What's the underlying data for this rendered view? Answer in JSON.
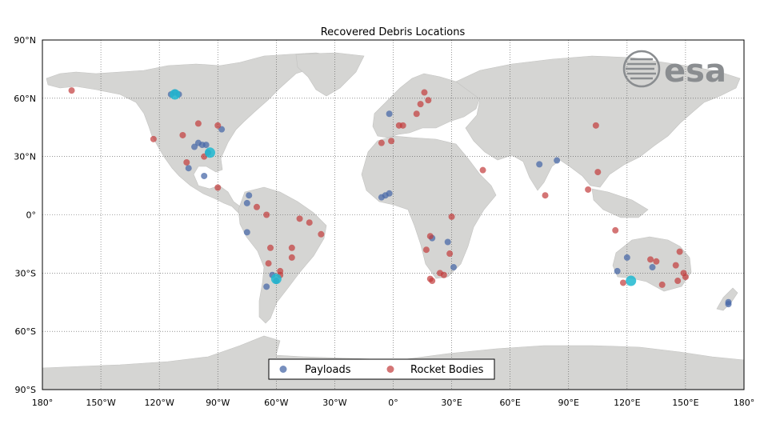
{
  "title": "Recovered Debris Locations",
  "logo": {
    "text": "esa",
    "color": "#8a8d90"
  },
  "colors": {
    "land": "#d5d5d3",
    "ocean": "#ffffff",
    "payloads": "#4a6aa8",
    "rocket_bodies": "#c23b3b",
    "highlight": "#1fb8d0",
    "grid": "#555555"
  },
  "legend": {
    "placement": "bottom-center",
    "items": [
      {
        "key": "payloads",
        "label": "Payloads"
      },
      {
        "key": "rocket_bodies",
        "label": "Rocket Bodies"
      }
    ]
  },
  "chart_data": {
    "type": "scatter",
    "title": "Recovered Debris Locations",
    "xlim": [
      -180,
      180
    ],
    "ylim": [
      -90,
      90
    ],
    "grid": true,
    "x_ticks": [
      {
        "v": -180,
        "label": "180°"
      },
      {
        "v": -150,
        "label": "150°W"
      },
      {
        "v": -120,
        "label": "120°W"
      },
      {
        "v": -90,
        "label": "90°W"
      },
      {
        "v": -60,
        "label": "60°W"
      },
      {
        "v": -30,
        "label": "30°W"
      },
      {
        "v": 0,
        "label": "0°"
      },
      {
        "v": 30,
        "label": "30°E"
      },
      {
        "v": 60,
        "label": "60°E"
      },
      {
        "v": 90,
        "label": "90°E"
      },
      {
        "v": 120,
        "label": "120°E"
      },
      {
        "v": 150,
        "label": "150°E"
      },
      {
        "v": 180,
        "label": "180°"
      }
    ],
    "y_ticks": [
      {
        "v": 90,
        "label": "90°N"
      },
      {
        "v": 60,
        "label": "60°N"
      },
      {
        "v": 30,
        "label": "30°N"
      },
      {
        "v": 0,
        "label": "0°"
      },
      {
        "v": -30,
        "label": "30°S"
      },
      {
        "v": -60,
        "label": "60°S"
      },
      {
        "v": -90,
        "label": "90°S"
      }
    ],
    "series": [
      {
        "name": "Payloads",
        "points": [
          [
            -114,
            62
          ],
          [
            -112,
            63
          ],
          [
            -110,
            62
          ],
          [
            -102,
            35
          ],
          [
            -100,
            37
          ],
          [
            -98,
            36
          ],
          [
            -96,
            36
          ],
          [
            -105,
            24
          ],
          [
            -97,
            20
          ],
          [
            -88,
            44
          ],
          [
            -95,
            32
          ],
          [
            -74,
            10
          ],
          [
            -75,
            6
          ],
          [
            -75,
            -9
          ],
          [
            -65,
            -37
          ],
          [
            -60,
            -34
          ],
          [
            -62,
            -31
          ],
          [
            -2,
            52
          ],
          [
            -6,
            9
          ],
          [
            -4,
            10
          ],
          [
            -2,
            11
          ],
          [
            20,
            -12
          ],
          [
            28,
            -14
          ],
          [
            31,
            -27
          ],
          [
            75,
            26
          ],
          [
            84,
            28
          ],
          [
            115,
            -29
          ],
          [
            120,
            -22
          ],
          [
            133,
            -27
          ],
          [
            172,
            -45
          ],
          [
            172,
            -46
          ]
        ]
      },
      {
        "name": "Rocket Bodies",
        "points": [
          [
            -165,
            64
          ],
          [
            -123,
            39
          ],
          [
            -108,
            41
          ],
          [
            -106,
            27
          ],
          [
            -100,
            47
          ],
          [
            -90,
            46
          ],
          [
            -97,
            30
          ],
          [
            -90,
            14
          ],
          [
            -70,
            4
          ],
          [
            -65,
            0
          ],
          [
            -48,
            -2
          ],
          [
            -43,
            -4
          ],
          [
            -37,
            -10
          ],
          [
            -63,
            -17
          ],
          [
            -52,
            -17
          ],
          [
            -52,
            -22
          ],
          [
            -58,
            -29
          ],
          [
            -58,
            -31
          ],
          [
            -64,
            -25
          ],
          [
            -6,
            37
          ],
          [
            -1,
            38
          ],
          [
            3,
            46
          ],
          [
            5,
            46
          ],
          [
            12,
            52
          ],
          [
            14,
            57
          ],
          [
            16,
            63
          ],
          [
            18,
            59
          ],
          [
            30,
            -1
          ],
          [
            46,
            23
          ],
          [
            19,
            -11
          ],
          [
            17,
            -18
          ],
          [
            29,
            -20
          ],
          [
            24,
            -30
          ],
          [
            26,
            -31
          ],
          [
            19,
            -33
          ],
          [
            20,
            -34
          ],
          [
            78,
            10
          ],
          [
            104,
            46
          ],
          [
            105,
            22
          ],
          [
            100,
            13
          ],
          [
            114,
            -8
          ],
          [
            118,
            -35
          ],
          [
            132,
            -23
          ],
          [
            135,
            -24
          ],
          [
            138,
            -36
          ],
          [
            145,
            -26
          ],
          [
            147,
            -19
          ],
          [
            146,
            -34
          ],
          [
            149,
            -30
          ],
          [
            150,
            -32
          ]
        ]
      },
      {
        "name": "",
        "points": [
          [
            -112,
            62
          ],
          [
            -94,
            32
          ],
          [
            -60,
            -33
          ],
          [
            122,
            -34
          ]
        ]
      }
    ]
  }
}
